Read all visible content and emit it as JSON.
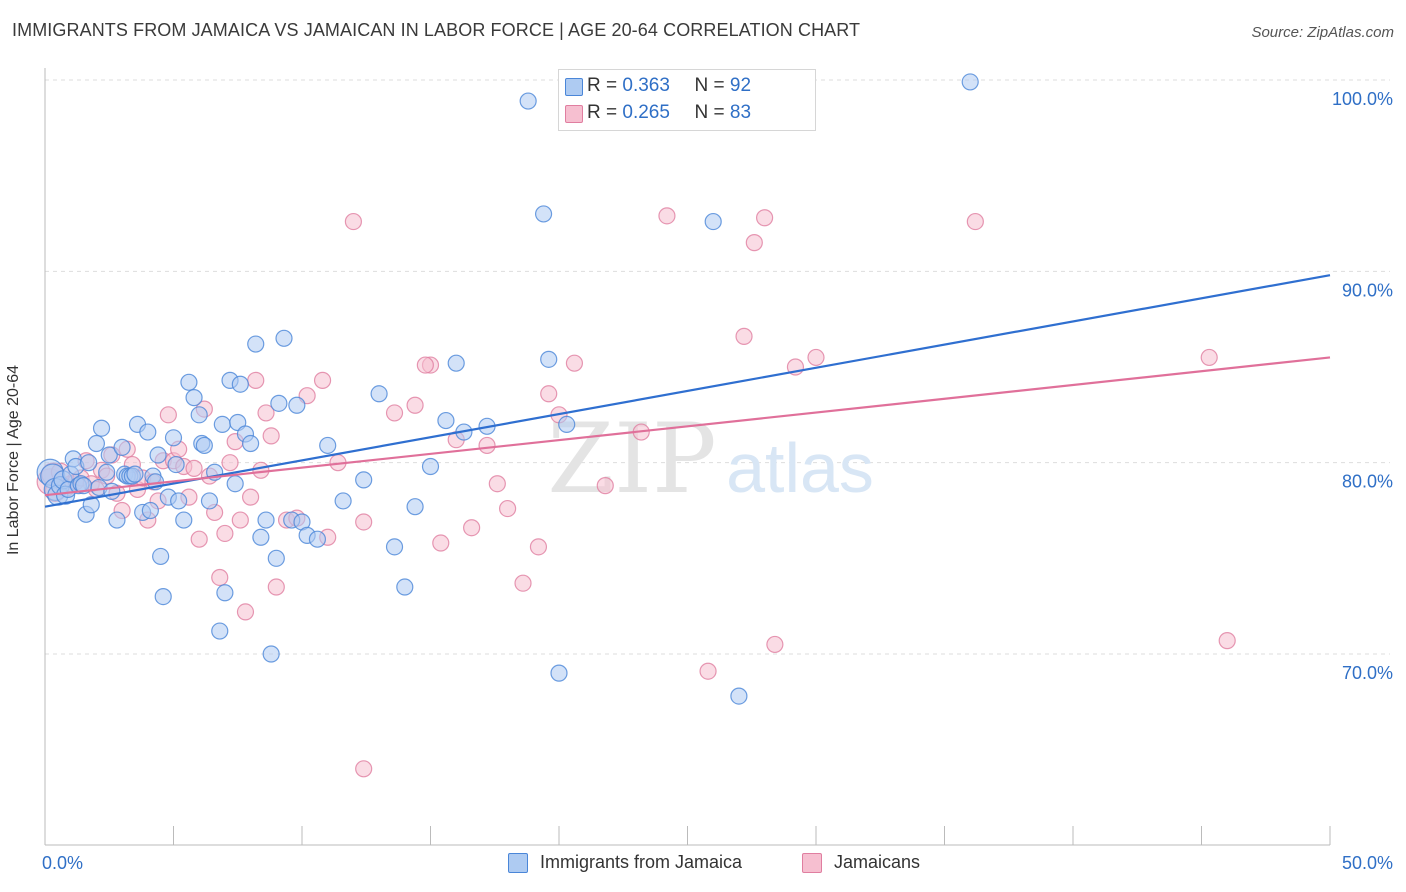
{
  "title": "IMMIGRANTS FROM JAMAICA VS JAMAICAN IN LABOR FORCE | AGE 20-64 CORRELATION CHART",
  "source": "Source: ZipAtlas.com",
  "watermark": {
    "zip": "ZIP",
    "atlas": "atlas"
  },
  "legend_top": {
    "rows": [
      {
        "r_label": "R =",
        "r_value": "0.363",
        "n_label": "N =",
        "n_value": "92"
      },
      {
        "r_label": "R =",
        "r_value": "0.265",
        "n_label": "N =",
        "n_value": "83"
      }
    ]
  },
  "legend_bottom": {
    "items": [
      "Immigrants from Jamaica",
      "Jamaicans"
    ]
  },
  "colors": {
    "blue_fill": "#aecbf2",
    "blue_stroke": "#4a86d8",
    "blue_line": "#2f6fd0",
    "pink_fill": "#f6bfd0",
    "pink_stroke": "#e07ea0",
    "pink_line": "#e0709a",
    "tick_label": "#2f6fc6",
    "grid": "#dddddd"
  },
  "chart_data": {
    "type": "scatter",
    "title": "IMMIGRANTS FROM JAMAICA VS JAMAICAN IN LABOR FORCE | AGE 20-64 CORRELATION CHART",
    "xlabel": "",
    "ylabel": "In Labor Force | Age 20-64",
    "xlim": [
      0,
      50
    ],
    "ylim": [
      60,
      102
    ],
    "x_tick_labels": [
      "0.0%",
      "50.0%"
    ],
    "y_ticks": [
      70,
      80,
      90,
      100
    ],
    "y_tick_labels": [
      "70.0%",
      "80.0%",
      "90.0%",
      "100.0%"
    ],
    "grid": true,
    "legend_position": "top-center",
    "series": [
      {
        "name": "Immigrants from Jamaica",
        "color": "#4a86d8",
        "trend": {
          "x": [
            0,
            50
          ],
          "y": [
            77.7,
            89.8
          ]
        },
        "x": [
          0.2,
          0.3,
          0.4,
          0.5,
          0.6,
          0.7,
          0.8,
          0.9,
          1.0,
          1.1,
          1.2,
          1.3,
          1.4,
          1.5,
          1.6,
          1.7,
          1.8,
          2.0,
          2.1,
          2.2,
          2.4,
          2.5,
          2.6,
          2.8,
          3.0,
          3.1,
          3.2,
          3.3,
          3.4,
          3.5,
          3.6,
          3.8,
          4.0,
          4.1,
          4.2,
          4.3,
          4.4,
          4.5,
          4.6,
          4.8,
          5.0,
          5.1,
          5.2,
          5.4,
          5.6,
          5.8,
          6.0,
          6.1,
          6.2,
          6.4,
          6.6,
          6.8,
          6.9,
          7.0,
          7.2,
          7.4,
          7.5,
          7.6,
          7.8,
          8.0,
          8.2,
          8.4,
          8.6,
          8.8,
          9.0,
          9.1,
          9.3,
          9.6,
          9.8,
          10.0,
          10.2,
          10.6,
          11.0,
          11.6,
          12.4,
          13.0,
          13.6,
          14.0,
          14.4,
          15.0,
          15.6,
          16.0,
          16.3,
          17.2,
          18.8,
          19.4,
          19.6,
          20.0,
          20.3,
          26.0,
          27.0,
          36.0
        ],
        "y": [
          79.5,
          79.3,
          78.6,
          78.3,
          78.8,
          79.1,
          78.3,
          78.6,
          79.4,
          80.2,
          79.8,
          78.8,
          78.9,
          78.8,
          77.3,
          80.0,
          77.8,
          81.0,
          78.7,
          81.8,
          79.5,
          80.4,
          78.5,
          77.0,
          80.8,
          79.4,
          79.3,
          79.3,
          79.3,
          79.4,
          82.0,
          77.4,
          81.6,
          77.5,
          79.3,
          79.0,
          80.4,
          75.1,
          73.0,
          78.2,
          81.3,
          79.9,
          78.0,
          77.0,
          84.2,
          83.4,
          82.5,
          81.0,
          80.9,
          78.0,
          79.5,
          71.2,
          82.0,
          73.2,
          84.3,
          78.9,
          82.1,
          84.1,
          81.5,
          81.0,
          86.2,
          76.1,
          77.0,
          70.0,
          75.0,
          83.1,
          86.5,
          77.0,
          83.0,
          76.9,
          76.2,
          76.0,
          80.9,
          78.0,
          79.1,
          83.6,
          75.6,
          73.5,
          77.7,
          79.8,
          82.2,
          85.2,
          81.6,
          81.9,
          98.9,
          93.0,
          85.4,
          69.0,
          82.0,
          92.6,
          67.8,
          99.9
        ],
        "size": [
          26,
          24,
          22,
          20,
          18,
          18,
          18,
          16,
          16,
          16,
          16,
          16,
          16,
          16,
          16,
          16,
          16,
          16,
          16,
          16,
          16,
          16,
          16,
          16,
          16,
          16,
          16,
          16,
          16,
          16,
          16,
          16,
          16,
          16,
          16,
          16,
          16,
          16,
          16,
          16,
          16,
          16,
          16,
          16,
          16,
          16,
          16,
          16,
          16,
          16,
          16,
          16,
          16,
          16,
          16,
          16,
          16,
          16,
          16,
          16,
          16,
          16,
          16,
          16,
          16,
          16,
          16,
          16,
          16,
          16,
          16,
          16,
          16,
          16,
          16,
          16,
          16,
          16,
          16,
          16,
          16,
          16,
          16,
          16,
          16,
          16,
          16,
          16,
          16,
          16,
          16,
          16
        ]
      },
      {
        "name": "Jamaicans",
        "color": "#e07ea0",
        "trend": {
          "x": [
            0,
            50
          ],
          "y": [
            78.3,
            85.5
          ]
        },
        "x": [
          0.2,
          0.3,
          0.4,
          0.6,
          0.8,
          1.0,
          1.2,
          1.4,
          1.6,
          1.8,
          2.0,
          2.2,
          2.4,
          2.6,
          2.8,
          3.0,
          3.2,
          3.4,
          3.6,
          3.8,
          4.0,
          4.2,
          4.4,
          4.6,
          4.8,
          5.0,
          5.2,
          5.4,
          5.6,
          5.8,
          6.0,
          6.2,
          6.4,
          6.6,
          6.8,
          7.0,
          7.2,
          7.4,
          7.6,
          7.8,
          8.0,
          8.2,
          8.4,
          8.6,
          8.8,
          9.0,
          9.4,
          9.8,
          10.2,
          10.8,
          11.0,
          11.4,
          12.0,
          12.4,
          13.6,
          14.4,
          15.0,
          15.4,
          16.0,
          16.6,
          17.2,
          17.6,
          18.0,
          18.6,
          19.2,
          19.6,
          20.0,
          20.6,
          21.8,
          23.2,
          24.2,
          25.8,
          27.2,
          27.6,
          28.0,
          28.4,
          29.2,
          30.0,
          36.2,
          45.3,
          46.0,
          12.4,
          14.8
        ],
        "y": [
          79.0,
          79.4,
          78.5,
          79.5,
          78.7,
          78.9,
          79.0,
          79.2,
          80.1,
          78.9,
          78.6,
          79.6,
          79.3,
          80.4,
          78.4,
          77.5,
          80.7,
          79.9,
          78.6,
          79.2,
          77.0,
          79.0,
          78.0,
          80.1,
          82.5,
          80.1,
          80.7,
          79.8,
          78.2,
          79.7,
          76.0,
          82.8,
          79.3,
          77.4,
          74.0,
          76.3,
          80.0,
          81.1,
          77.0,
          72.2,
          78.2,
          84.3,
          79.6,
          82.6,
          81.4,
          73.5,
          77.0,
          77.1,
          83.5,
          84.3,
          76.1,
          80.0,
          92.6,
          76.9,
          82.6,
          83.0,
          85.1,
          75.8,
          81.2,
          76.6,
          80.9,
          78.9,
          77.6,
          73.7,
          75.6,
          83.6,
          82.5,
          85.2,
          78.8,
          81.6,
          92.9,
          69.1,
          86.6,
          91.5,
          92.8,
          70.5,
          85.0,
          85.5,
          92.6,
          85.5,
          70.7,
          64.0,
          85.1
        ],
        "size": [
          26,
          22,
          20,
          18,
          18,
          16,
          16,
          16,
          16,
          16,
          16,
          16,
          16,
          16,
          16,
          16,
          16,
          16,
          16,
          16,
          16,
          16,
          16,
          16,
          16,
          16,
          16,
          16,
          16,
          16,
          16,
          16,
          16,
          16,
          16,
          16,
          16,
          16,
          16,
          16,
          16,
          16,
          16,
          16,
          16,
          16,
          16,
          16,
          16,
          16,
          16,
          16,
          16,
          16,
          16,
          16,
          16,
          16,
          16,
          16,
          16,
          16,
          16,
          16,
          16,
          16,
          16,
          16,
          16,
          16,
          16,
          16,
          16,
          16,
          16,
          16,
          16,
          16,
          16,
          16,
          16,
          16,
          16
        ]
      }
    ]
  }
}
